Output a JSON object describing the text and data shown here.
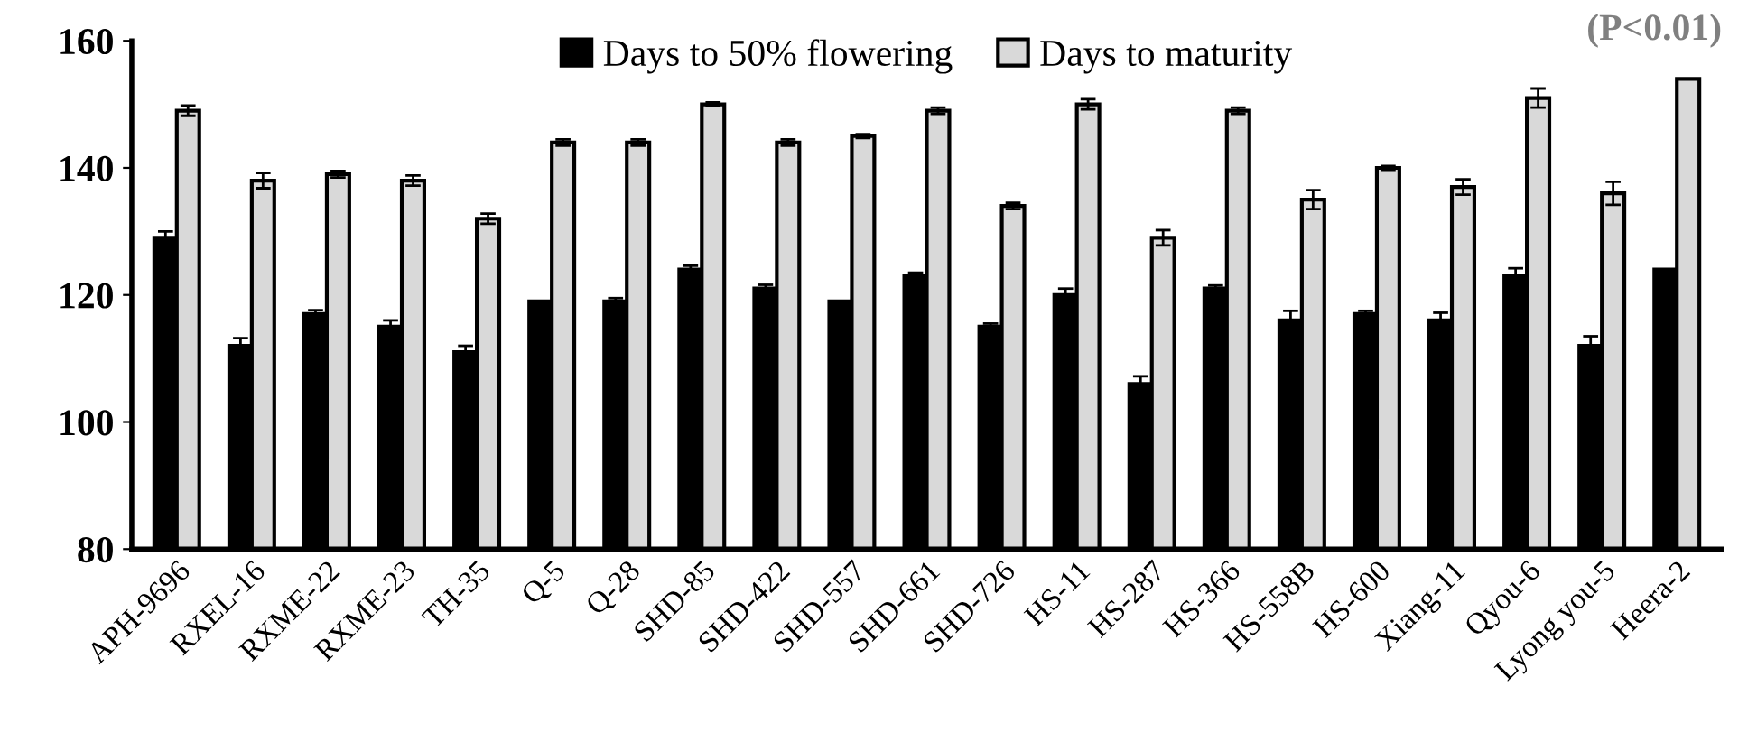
{
  "chart_data": {
    "type": "bar",
    "categories": [
      "APH-9696",
      "RXEL-16",
      "RXME-22",
      "RXME-23",
      "TH-35",
      "Q-5",
      "Q-28",
      "SHD-85",
      "SHD-422",
      "SHD-557",
      "SHD-661",
      "SHD-726",
      "HS-11",
      "HS-287",
      "HS-366",
      "HS-558B",
      "HS-600",
      "Xiang-11",
      "Qyou-6",
      "Lyong you-5",
      "Heera-2"
    ],
    "series": [
      {
        "name": "Days to 50% flowering",
        "color": "#000000",
        "values": [
          129,
          112,
          117,
          115,
          111,
          119,
          119,
          124,
          121,
          119,
          123,
          115,
          120,
          106,
          121,
          116,
          117,
          116,
          123,
          112,
          124
        ],
        "errors": [
          1,
          1.2,
          0.6,
          1,
          1,
          null,
          0.5,
          0.6,
          0.6,
          null,
          0.5,
          0.5,
          1,
          1.2,
          0.5,
          1.5,
          0.5,
          1.2,
          1.2,
          1.5,
          null
        ]
      },
      {
        "name": "Days to maturity",
        "color": "#d9d9d9",
        "values": [
          149,
          138,
          139,
          138,
          132,
          144,
          144,
          150,
          144,
          145,
          149,
          134,
          150,
          129,
          149,
          135,
          140,
          137,
          151,
          136,
          154
        ],
        "errors": [
          0.8,
          1.2,
          0.5,
          0.8,
          0.8,
          0.5,
          0.5,
          0.3,
          0.5,
          0.3,
          0.5,
          0.5,
          0.8,
          1.2,
          0.5,
          1.5,
          0.3,
          1.2,
          1.5,
          1.8,
          null
        ]
      }
    ],
    "ylim": [
      80,
      160
    ],
    "yticks": [
      80,
      100,
      120,
      140,
      160
    ],
    "grid": false,
    "legend": "top",
    "annotations": [
      "(P<0.01)"
    ]
  }
}
